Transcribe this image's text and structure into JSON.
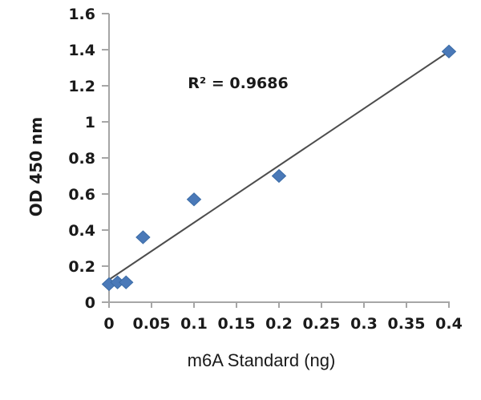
{
  "figure": {
    "kind": "standard-curve",
    "background_color": "#FFFFFF"
  },
  "chart_data": {
    "type": "scatter",
    "title": "",
    "xlabel": "m6A Standard (ng)",
    "ylabel": "OD 450 nm",
    "xlim": [
      0,
      0.4
    ],
    "ylim": [
      0,
      1.6
    ],
    "x_ticks": [
      0,
      0.05,
      0.1,
      0.15,
      0.2,
      0.25,
      0.3,
      0.35,
      0.4
    ],
    "y_ticks": [
      0,
      0.2,
      0.4,
      0.6,
      0.8,
      1,
      1.2,
      1.4,
      1.6
    ],
    "x_tick_labels": [
      "0",
      "0.05",
      "0.1",
      "0.15",
      "0.2",
      "0.25",
      "0.3",
      "0.35",
      "0.4"
    ],
    "y_tick_labels": [
      "0",
      "0.2",
      "0.4",
      "0.6",
      "0.8",
      "1",
      "1.2",
      "1.4",
      "1.6"
    ],
    "grid": false,
    "legend": false,
    "series": [
      {
        "name": "m6A standard",
        "marker": "diamond",
        "points": [
          {
            "x": 0,
            "y": 0.1
          },
          {
            "x": 0.01,
            "y": 0.11
          },
          {
            "x": 0.02,
            "y": 0.11
          },
          {
            "x": 0.04,
            "y": 0.36
          },
          {
            "x": 0.1,
            "y": 0.57
          },
          {
            "x": 0.2,
            "y": 0.7
          },
          {
            "x": 0.4,
            "y": 1.39
          }
        ]
      }
    ],
    "trendline": {
      "type": "linear",
      "x1": 0,
      "y1": 0.125,
      "x2": 0.4,
      "y2": 1.39,
      "r_squared": 0.9686
    },
    "annotation": {
      "text": "R² = 0.9686",
      "x": 0.153,
      "y": 1.22
    },
    "colors": {
      "marker_fill": "#4A79B8",
      "marker_stroke": "#3B6CA7",
      "trendline": "#4D4D4D",
      "axis": "#A6A6A6",
      "text": "#1A1A1A"
    }
  }
}
